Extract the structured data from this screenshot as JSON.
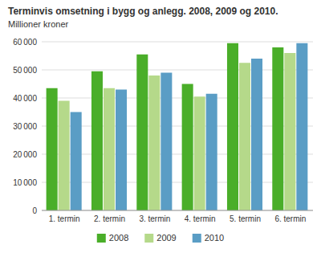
{
  "chart_data": {
    "type": "bar",
    "title": "Terminvis omsetning i bygg og anlegg. 2008, 2009 og 2010.",
    "subtitle": "Millioner kroner",
    "categories": [
      "1. termin",
      "2. termin",
      "3. termin",
      "4. termin",
      "5. termin",
      "6. termin"
    ],
    "series": [
      {
        "name": "2008",
        "color": "#4aae29",
        "values": [
          43500,
          49500,
          55500,
          45000,
          59500,
          58000
        ]
      },
      {
        "name": "2009",
        "color": "#b5d98a",
        "values": [
          39000,
          43500,
          48000,
          40500,
          52500,
          56000
        ]
      },
      {
        "name": "2010",
        "color": "#5a9dc5",
        "values": [
          35000,
          43000,
          49000,
          41500,
          54000,
          59500
        ]
      }
    ],
    "ylim": [
      0,
      60000
    ],
    "yticks": [
      0,
      {
        "value": 10000,
        "label": "10 000"
      },
      {
        "value": 20000,
        "label": "20 000"
      },
      {
        "value": 30000,
        "label": "30 000"
      },
      {
        "value": 40000,
        "label": "40 000"
      },
      {
        "value": 50000,
        "label": "50 000"
      },
      {
        "value": 60000,
        "label": "60 000"
      }
    ],
    "grid": true,
    "legend": "bottom"
  }
}
